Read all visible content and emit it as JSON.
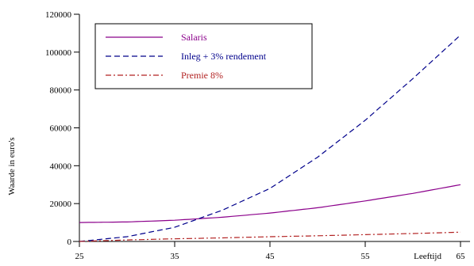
{
  "chart_data": {
    "type": "line",
    "title": "",
    "xlabel": "Leeftijd",
    "ylabel": "Waarde in euro's",
    "xlim": [
      25,
      65
    ],
    "ylim": [
      0,
      120000
    ],
    "xticks": [
      25,
      35,
      45,
      55,
      65
    ],
    "yticks": [
      0,
      20000,
      40000,
      60000,
      80000,
      100000,
      120000
    ],
    "grid": false,
    "legend_position": "top-left",
    "x": [
      25,
      30,
      35,
      40,
      45,
      50,
      55,
      60,
      65
    ],
    "series": [
      {
        "name": "Salaris",
        "color": "#8b008b",
        "dash": "solid",
        "values": [
          10000,
          10300,
          11200,
          12800,
          15000,
          17800,
          21400,
          25400,
          30000
        ]
      },
      {
        "name": "Inleg + 3% rendement",
        "color": "#00008b",
        "dash": "dashed",
        "values": [
          0,
          2500,
          7500,
          16500,
          28000,
          44500,
          64000,
          86000,
          109000
        ]
      },
      {
        "name": "Premie 8%",
        "color": "#b22222",
        "dash": "dashdot",
        "values": [
          0,
          800,
          1400,
          1900,
          2500,
          3000,
          3600,
          4200,
          4900
        ]
      }
    ]
  }
}
